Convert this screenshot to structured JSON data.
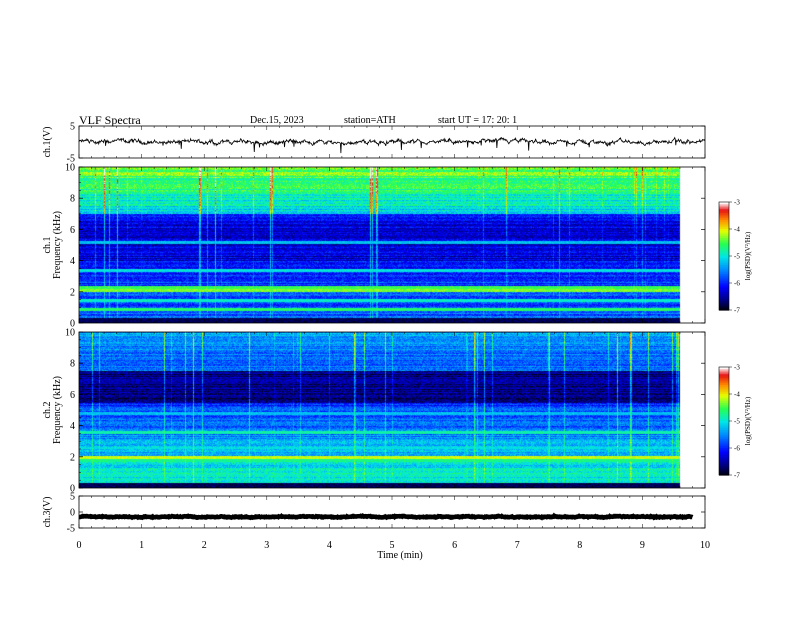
{
  "header": {
    "title": "VLF  Spectra",
    "date": "Dec.15, 2023",
    "station": "station=ATH",
    "start": "start  UT  =    17: 20: 1"
  },
  "chart_data": [
    {
      "type": "line",
      "name": "ch1-waveform",
      "ylabel": "ch.1(V)",
      "ylim": [
        -5,
        5
      ],
      "y_ticks": [
        "5",
        "-5"
      ],
      "xlim": [
        0,
        10
      ],
      "baseline": 0,
      "noise_amplitude": 1.1,
      "spike_amplitude": -3
    },
    {
      "type": "heatmap",
      "name": "ch1-spectrogram",
      "ylabel": "ch.1\nFrequency (kHz)",
      "ylabel_lines": [
        "ch.1",
        "Frequency (kHz)"
      ],
      "ylim": [
        0,
        10
      ],
      "y_ticks": [
        "0",
        "2",
        "4",
        "6",
        "8",
        "10"
      ],
      "xlim": [
        0,
        9.8
      ],
      "colorbar": {
        "label": "log(PSD)(V²/Hz)",
        "range": [
          -7,
          -3
        ],
        "ticks": [
          "-3",
          "-4",
          "-5",
          "-6",
          "-7"
        ]
      },
      "bands_khz": [
        {
          "f": 2.1,
          "level": -4.3
        },
        {
          "f": 2.3,
          "level": -4.5
        },
        {
          "f": 0.9,
          "level": -4.6
        },
        {
          "f": 1.5,
          "level": -4.9
        },
        {
          "f": 3.4,
          "level": -5.0
        },
        {
          "f": 5.2,
          "level": -5.2
        }
      ]
    },
    {
      "type": "heatmap",
      "name": "ch2-spectrogram",
      "ylabel": "ch.2\nFrequency (kHz)",
      "ylabel_lines": [
        "ch.2",
        "Frequency (kHz)"
      ],
      "ylim": [
        0,
        10
      ],
      "y_ticks": [
        "0",
        "2",
        "4",
        "6",
        "8",
        "10"
      ],
      "xlim": [
        0,
        9.8
      ],
      "colorbar": {
        "label": "log(PSD)(V²/Hz)",
        "range": [
          -7,
          -3
        ],
        "ticks": [
          "-3",
          "-4",
          "-5",
          "-6",
          "-7"
        ]
      },
      "bands_khz": [
        {
          "f": 2.0,
          "level": -4.1
        },
        {
          "f": 1.8,
          "level": -4.7
        },
        {
          "f": 3.6,
          "level": -4.8
        },
        {
          "f": 2.6,
          "level": -5.0
        },
        {
          "f": 4.8,
          "level": -5.2
        },
        {
          "f": 0.9,
          "level": -5.0
        }
      ]
    },
    {
      "type": "line",
      "name": "ch3-waveform",
      "ylabel": "ch.3(V)",
      "ylim": [
        -5,
        5
      ],
      "y_ticks": [
        "5",
        "0",
        "-5"
      ],
      "xlim": [
        0,
        9.8
      ],
      "baseline": -1.5,
      "noise_amplitude": 0.25
    }
  ],
  "x_axis": {
    "label": "Time  (min)",
    "range": [
      0,
      10
    ],
    "ticks": [
      "0",
      "1",
      "2",
      "3",
      "4",
      "5",
      "6",
      "7",
      "8",
      "9",
      "10"
    ]
  }
}
